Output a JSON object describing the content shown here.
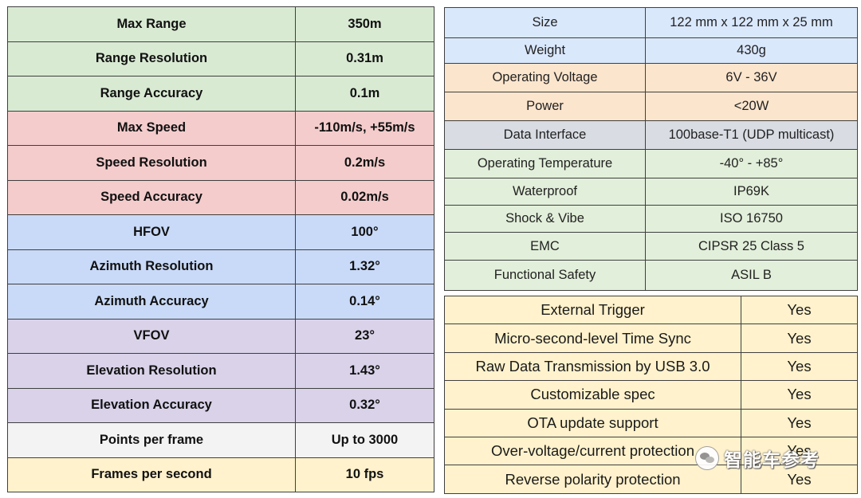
{
  "left_table": [
    {
      "label": "Max Range",
      "value": "350m",
      "color": "#d9ead3"
    },
    {
      "label": "Range Resolution",
      "value": "0.31m",
      "color": "#d9ead3"
    },
    {
      "label": "Range Accuracy",
      "value": "0.1m",
      "color": "#d9ead3"
    },
    {
      "label": "Max Speed",
      "value": "-110m/s, +55m/s",
      "color": "#f4cccc"
    },
    {
      "label": "Speed Resolution",
      "value": "0.2m/s",
      "color": "#f4cccc"
    },
    {
      "label": "Speed Accuracy",
      "value": "0.02m/s",
      "color": "#f4cccc"
    },
    {
      "label": "HFOV",
      "value": "100°",
      "color": "#c9daf8"
    },
    {
      "label": "Azimuth Resolution",
      "value": "1.32°",
      "color": "#c9daf8"
    },
    {
      "label": "Azimuth Accuracy",
      "value": "0.14°",
      "color": "#c9daf8"
    },
    {
      "label": "VFOV",
      "value": "23°",
      "color": "#d9d2e9"
    },
    {
      "label": "Elevation Resolution",
      "value": "1.43°",
      "color": "#d9d2e9"
    },
    {
      "label": "Elevation Accuracy",
      "value": "0.32°",
      "color": "#d9d2e9"
    },
    {
      "label": "Points per frame",
      "value": "Up to 3000",
      "color": "#f3f3f3"
    },
    {
      "label": "Frames per second",
      "value": "10 fps",
      "color": "#fff2cc"
    }
  ],
  "right_top_table": [
    {
      "label": "Size",
      "value": "122 mm x 122 mm x 25 mm",
      "color": "#dae8fc"
    },
    {
      "label": "Weight",
      "value": "430g",
      "color": "#dae8fc"
    },
    {
      "label": "Operating Voltage",
      "value": "6V - 36V",
      "color": "#fce5cd"
    },
    {
      "label": "Power",
      "value": "<20W",
      "color": "#fce5cd"
    },
    {
      "label": "Data Interface",
      "value": "100base-T1 (UDP multicast)",
      "color": "#d9dde3"
    },
    {
      "label": "Operating Temperature",
      "value": "-40° - +85°",
      "color": "#e2efda"
    },
    {
      "label": "Waterproof",
      "value": "IP69K",
      "color": "#e2efda"
    },
    {
      "label": "Shock & Vibe",
      "value": "ISO 16750",
      "color": "#e2efda"
    },
    {
      "label": "EMC",
      "value": "CIPSR 25 Class 5",
      "color": "#e2efda"
    },
    {
      "label": "Functional Safety",
      "value": "ASIL B",
      "color": "#e2efda"
    }
  ],
  "right_bottom_table": [
    {
      "label": "External Trigger",
      "value": "Yes"
    },
    {
      "label": "Micro-second-level Time Sync",
      "value": "Yes"
    },
    {
      "label": "Raw Data Transmission by USB 3.0",
      "value": "Yes"
    },
    {
      "label": "Customizable spec",
      "value": "Yes"
    },
    {
      "label": "OTA update support",
      "value": "Yes"
    },
    {
      "label": "Over-voltage/current protection",
      "value": "Yes"
    },
    {
      "label": "Reverse polarity protection",
      "value": "Yes"
    }
  ],
  "watermark": {
    "text": "智能车参考",
    "icon": "wechat-icon"
  }
}
